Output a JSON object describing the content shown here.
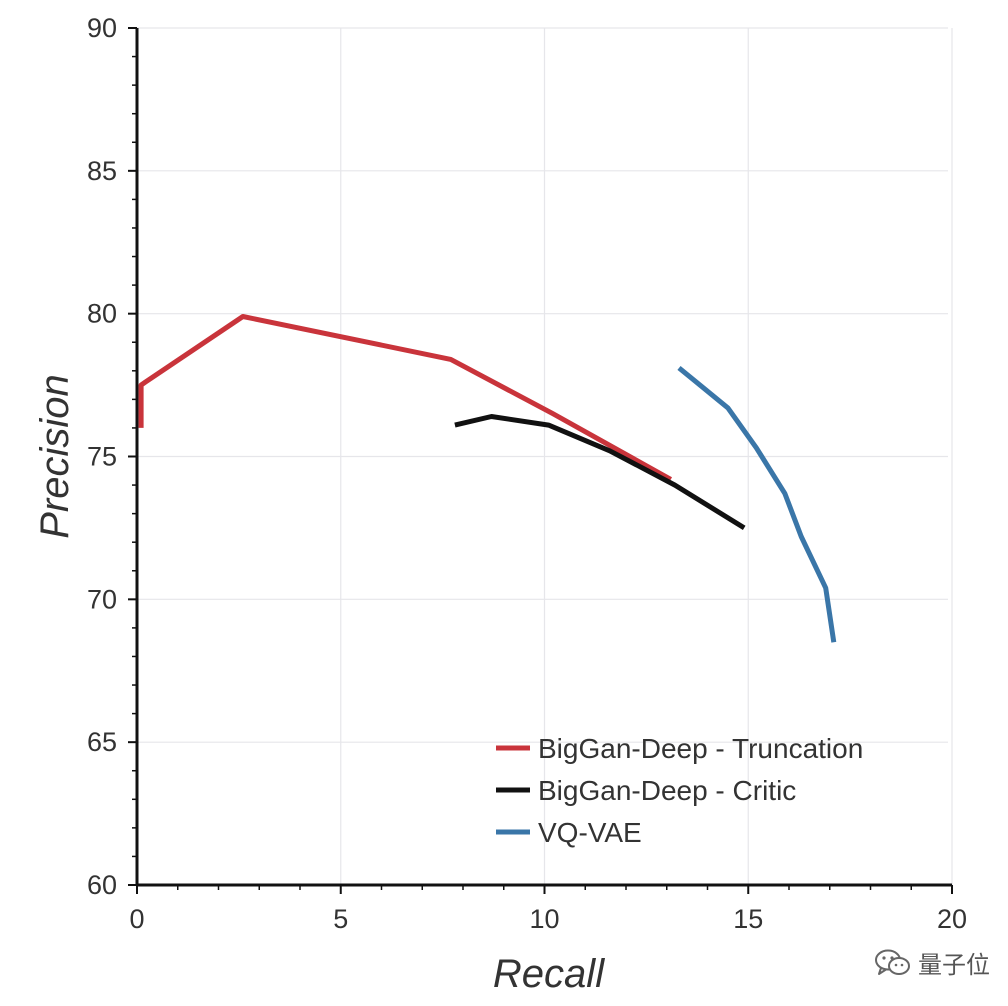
{
  "chart_data": {
    "type": "line",
    "title": "",
    "xlabel": "Recall",
    "ylabel": "Precision",
    "xlim": [
      0,
      20
    ],
    "ylim": [
      60,
      90
    ],
    "xticks": [
      "0",
      "5",
      "10",
      "15",
      "20"
    ],
    "yticks": [
      "60",
      "65",
      "70",
      "75",
      "80",
      "85",
      "90"
    ],
    "grid": true,
    "legend_position": "bottom-right",
    "series": [
      {
        "name": "BigGan-Deep - Truncation",
        "color": "#c9343b",
        "x": [
          0.1,
          0.1,
          0.2,
          2.6,
          7.7,
          10.2,
          13.1
        ],
        "y": [
          76.0,
          77.5,
          77.6,
          79.9,
          78.4,
          76.5,
          74.2
        ]
      },
      {
        "name": "BigGan-Deep - Critic",
        "color": "#111111",
        "x": [
          7.8,
          8.7,
          10.1,
          11.6,
          13.2,
          14.9
        ],
        "y": [
          76.1,
          76.4,
          76.1,
          75.2,
          74.0,
          72.5
        ]
      },
      {
        "name": "VQ-VAE",
        "color": "#3a76a8",
        "x": [
          13.3,
          14.5,
          15.2,
          15.9,
          16.3,
          16.9,
          17.1
        ],
        "y": [
          78.1,
          76.7,
          75.3,
          73.7,
          72.2,
          70.4,
          68.5
        ]
      }
    ]
  },
  "watermark": {
    "icon": "wechat-icon",
    "text": "量子位"
  }
}
